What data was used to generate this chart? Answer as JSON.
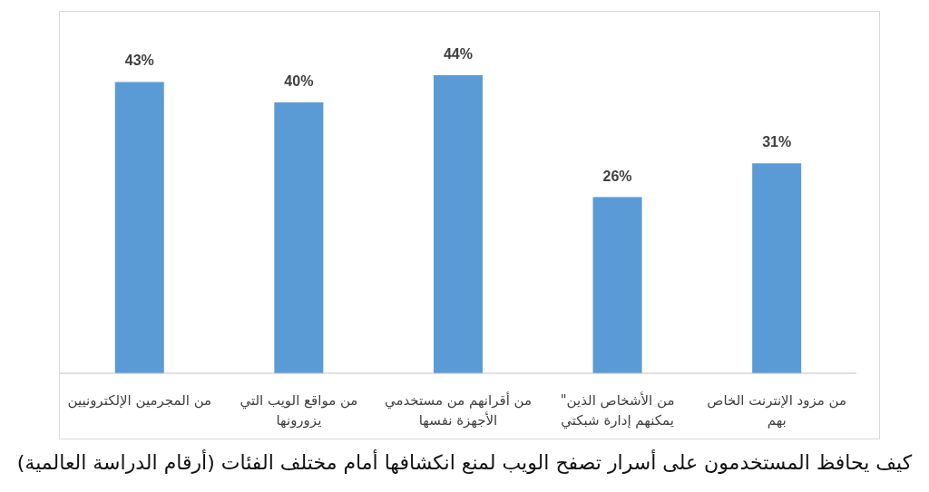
{
  "chart_data": {
    "type": "bar",
    "title": "كيف يحافظ المستخدمون على أسرار تصفح الويب لمنع انكشافها أمام مختلف الفئات (أرقام الدراسة العالمية)",
    "categories": [
      "من المجرمين الإلكترونيين",
      "من مواقع الويب التي يزورونها",
      "من أقرانهم من مستخدمي الأجهزة نفسها",
      "\"من الأشخاص الذين يمكنهم إدارة شبكتي",
      "من مزود الإنترنت الخاص بهم"
    ],
    "values": [
      43,
      40,
      44,
      26,
      31
    ],
    "value_labels": [
      "43%",
      "40%",
      "44%",
      "26%",
      "31%"
    ],
    "color": "#5b9bd5"
  }
}
